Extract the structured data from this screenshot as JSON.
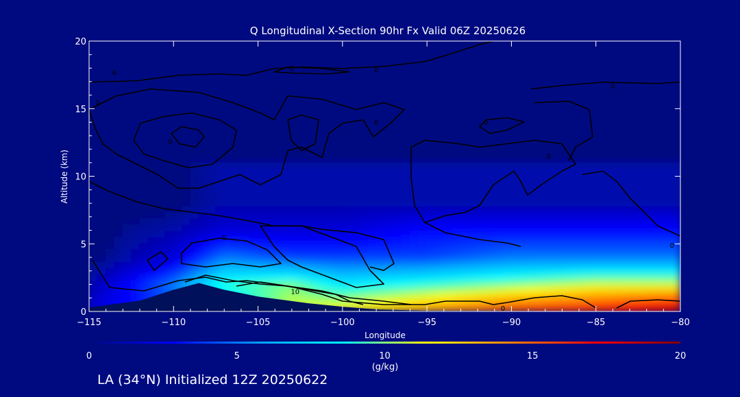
{
  "chart_data": {
    "type": "heatmap",
    "title": "Q Longitudinal X-Section 90hr  Fx Valid 06Z 20250626",
    "xlabel": "Longitude",
    "ylabel": "Altitude (km)",
    "xlim": [
      -115,
      -80
    ],
    "ylim": [
      0,
      20
    ],
    "x_ticks": [
      -115,
      -110,
      -105,
      -100,
      -95,
      -90,
      -85,
      -80
    ],
    "y_ticks": [
      0,
      5,
      10,
      15,
      20
    ],
    "colorbar": {
      "label": "(g/kg)",
      "range": [
        0,
        20
      ],
      "ticks": [
        0,
        5,
        10,
        15,
        20
      ],
      "colors": [
        "#000a80",
        "#0000ff",
        "#00a0ff",
        "#00ffff",
        "#ffff00",
        "#ff8000",
        "#ff0000",
        "#800000"
      ]
    },
    "contour_labels": [
      {
        "text": "10",
        "lon": -102.8,
        "alt": 1.5
      },
      {
        "text": "0",
        "lon": -107.0,
        "alt": 5.5
      },
      {
        "text": "0",
        "lon": -90.5,
        "alt": 0.25
      },
      {
        "text": "0",
        "lon": -114.5,
        "alt": 15.5
      },
      {
        "text": "0",
        "lon": -110.2,
        "alt": 12.6
      },
      {
        "text": "0",
        "lon": -113.5,
        "alt": 17.7
      },
      {
        "text": "0",
        "lon": -103.0,
        "alt": 18.0
      },
      {
        "text": "0",
        "lon": -98.0,
        "alt": 17.9
      },
      {
        "text": "0",
        "lon": -98.0,
        "alt": 14.0
      },
      {
        "text": "0",
        "lon": -91.5,
        "alt": 14.0
      },
      {
        "text": "0",
        "lon": -84.0,
        "alt": 16.7
      },
      {
        "text": "0",
        "lon": -87.8,
        "alt": 11.5
      },
      {
        "text": "0",
        "lon": -80.5,
        "alt": 4.9
      }
    ],
    "q_field_summary": [
      {
        "lon": -115,
        "alt0": 2,
        "alt2": 1,
        "alt4": 0,
        "alt6": 0,
        "alt8": 0
      },
      {
        "lon": -110,
        "alt0": 4,
        "alt2": 5,
        "alt4": 2,
        "alt6": 1,
        "alt8": 0
      },
      {
        "lon": -107,
        "alt0": 7,
        "alt2": 9,
        "alt4": 5,
        "alt6": 2,
        "alt8": 1
      },
      {
        "lon": -103,
        "alt0": 11,
        "alt2": 10,
        "alt4": 4,
        "alt6": 2,
        "alt8": 1
      },
      {
        "lon": -100,
        "alt0": 12,
        "alt2": 8,
        "alt4": 4,
        "alt6": 2,
        "alt8": 1
      },
      {
        "lon": -95,
        "alt0": 14,
        "alt2": 9,
        "alt4": 4,
        "alt6": 3,
        "alt8": 1
      },
      {
        "lon": -90,
        "alt0": 16,
        "alt2": 10,
        "alt4": 5,
        "alt6": 3,
        "alt8": 1
      },
      {
        "lon": -85,
        "alt0": 17,
        "alt2": 11,
        "alt4": 5,
        "alt6": 3,
        "alt8": 1
      },
      {
        "lon": -80,
        "alt0": 19,
        "alt2": 11,
        "alt4": 5,
        "alt6": 3,
        "alt8": 1
      }
    ],
    "terrain": [
      {
        "lon": -115,
        "alt": 0.3
      },
      {
        "lon": -112,
        "alt": 0.8
      },
      {
        "lon": -110,
        "alt": 1.6
      },
      {
        "lon": -108.5,
        "alt": 2.1
      },
      {
        "lon": -107,
        "alt": 1.6
      },
      {
        "lon": -105,
        "alt": 1.1
      },
      {
        "lon": -102,
        "alt": 0.6
      },
      {
        "lon": -100,
        "alt": 0.35
      },
      {
        "lon": -98,
        "alt": 0.15
      },
      {
        "lon": -95,
        "alt": 0.05
      },
      {
        "lon": -80,
        "alt": 0.0
      }
    ]
  },
  "footer": {
    "caption": "LA (34°N) Initialized 12Z 20250622"
  }
}
